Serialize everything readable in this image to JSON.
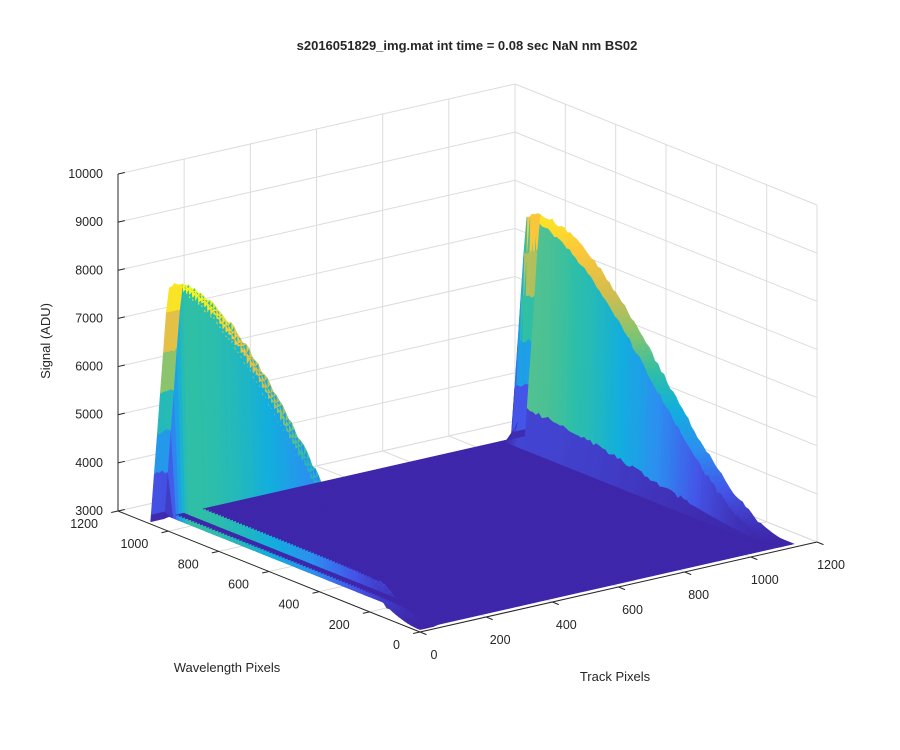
{
  "figure": {
    "title": "s2016051829_img.mat int time = 0.08 sec  NaN nm BS02"
  },
  "chart_data": {
    "type": "surface",
    "title": "s2016051829_img.mat int time = 0.08 sec  NaN nm BS02",
    "xlabel": "Track Pixels",
    "ylabel": "Wavelength Pixels",
    "zlabel": "Signal (ADU)",
    "xlim": [
      0,
      1200
    ],
    "ylim": [
      0,
      1200
    ],
    "zlim": [
      3000,
      10000
    ],
    "x_ticks": [
      "0",
      "200",
      "400",
      "600",
      "800",
      "1000",
      "1200"
    ],
    "y_ticks": [
      "0",
      "200",
      "400",
      "600",
      "800",
      "1000",
      "1200"
    ],
    "z_ticks": [
      "3000",
      "4000",
      "5000",
      "6000",
      "7000",
      "8000",
      "9000",
      "10000"
    ],
    "grid": true,
    "colormap": "parula",
    "colormap_stops": [
      "#3e26a8",
      "#4455e8",
      "#2c8ff0",
      "#12aede",
      "#2fbfa6",
      "#88c46e",
      "#d4bd4e",
      "#fcc83a",
      "#f9fb15"
    ],
    "surface_extent": {
      "track": [
        0,
        1130
      ],
      "wavelength": [
        0,
        1070
      ]
    },
    "peaks": [
      {
        "track_range": [
          0,
          40
        ],
        "peak_wavelength": 1000,
        "peak_signal": 8100
      },
      {
        "track_range": [
          1090,
          1130
        ],
        "peak_wavelength": 1010,
        "peak_signal": 7800
      }
    ],
    "baseline_signal": 3050,
    "view": "3d-default (azimuth -37.5, elevation 30)"
  }
}
